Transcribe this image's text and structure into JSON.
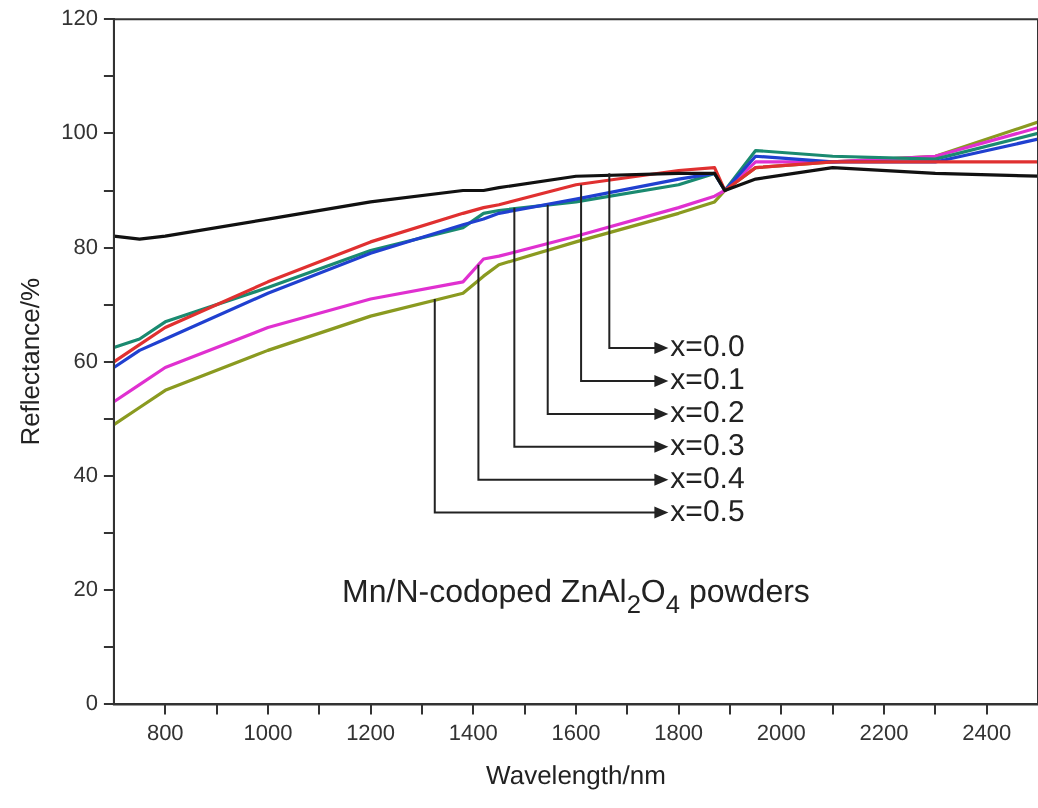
{
  "chart_data": {
    "type": "line",
    "xlabel": "Wavelength/nm",
    "ylabel": "Reflectance/%",
    "xlim": [
      700,
      2500
    ],
    "ylim": [
      0,
      120
    ],
    "xticks": [
      800,
      {
        "value": 900,
        "label": null
      },
      1000,
      {
        "value": 1100,
        "label": null
      },
      1200,
      {
        "value": 1300,
        "label": null
      },
      1400,
      {
        "value": 1500,
        "label": null
      },
      1600,
      {
        "value": 1700,
        "label": null
      },
      1800,
      {
        "value": 1900,
        "label": null
      },
      2000,
      {
        "value": 2100,
        "label": null
      },
      2200,
      {
        "value": 2300,
        "label": null
      },
      2400
    ],
    "yticks": [
      0,
      {
        "value": 10,
        "label": null
      },
      20,
      {
        "value": 30,
        "label": null
      },
      40,
      {
        "value": 50,
        "label": null
      },
      60,
      {
        "value": 70,
        "label": null
      },
      80,
      {
        "value": 90,
        "label": null
      },
      100,
      {
        "value": 110,
        "label": null
      },
      120
    ],
    "grid": false,
    "legend": false,
    "marker": "none",
    "line_style": "solid",
    "x": [
      700,
      750,
      800,
      1000,
      1200,
      1380,
      1420,
      1450,
      1600,
      1800,
      1870,
      1890,
      1950,
      2100,
      2300,
      2500
    ],
    "series": [
      {
        "color": "#111111",
        "values": [
          82,
          81.5,
          82,
          85,
          88,
          90,
          90,
          90.5,
          92.5,
          93,
          93,
          90,
          92,
          94,
          93,
          92.5
        ]
      },
      {
        "color": "#e03030",
        "values": [
          60,
          63,
          66,
          74,
          81,
          86,
          87,
          87.5,
          91,
          93.5,
          94,
          90,
          94,
          95,
          95,
          95
        ]
      },
      {
        "color": "#2040d0",
        "values": [
          59,
          62,
          64,
          72,
          79,
          84,
          85,
          86,
          88.5,
          92,
          93,
          90,
          96,
          95,
          95,
          99
        ]
      },
      {
        "color": "#1a8a70",
        "values": [
          62.5,
          64,
          67,
          73,
          79.5,
          83.5,
          86,
          86.5,
          88,
          91,
          93,
          90,
          97,
          96,
          95.5,
          100
        ]
      },
      {
        "color": "#e030d0",
        "values": [
          53,
          56,
          59,
          66,
          71,
          74,
          78,
          78.5,
          82,
          87,
          89,
          90,
          95,
          95,
          96,
          101
        ]
      },
      {
        "color": "#8a9a20",
        "values": [
          49,
          52,
          55,
          62,
          68,
          72,
          75,
          77,
          81,
          86,
          88,
          90,
          94,
          95,
          96,
          102
        ]
      }
    ],
    "annotations": [
      {
        "text": "x=0.0",
        "x": 1665,
        "y": 93
      },
      {
        "text": "x=0.1",
        "x": 1610,
        "y": 91
      },
      {
        "text": "x=0.2",
        "x": 1545,
        "y": 87.5
      },
      {
        "text": "x=0.3",
        "x": 1480,
        "y": 87
      },
      {
        "text": "x=0.4",
        "x": 1410,
        "y": 77
      },
      {
        "text": "x=0.5",
        "x": 1325,
        "y": 71
      },
      "Mn/N-codoped ZnAl$_{2}$O$_{4}$ powders"
    ]
  }
}
